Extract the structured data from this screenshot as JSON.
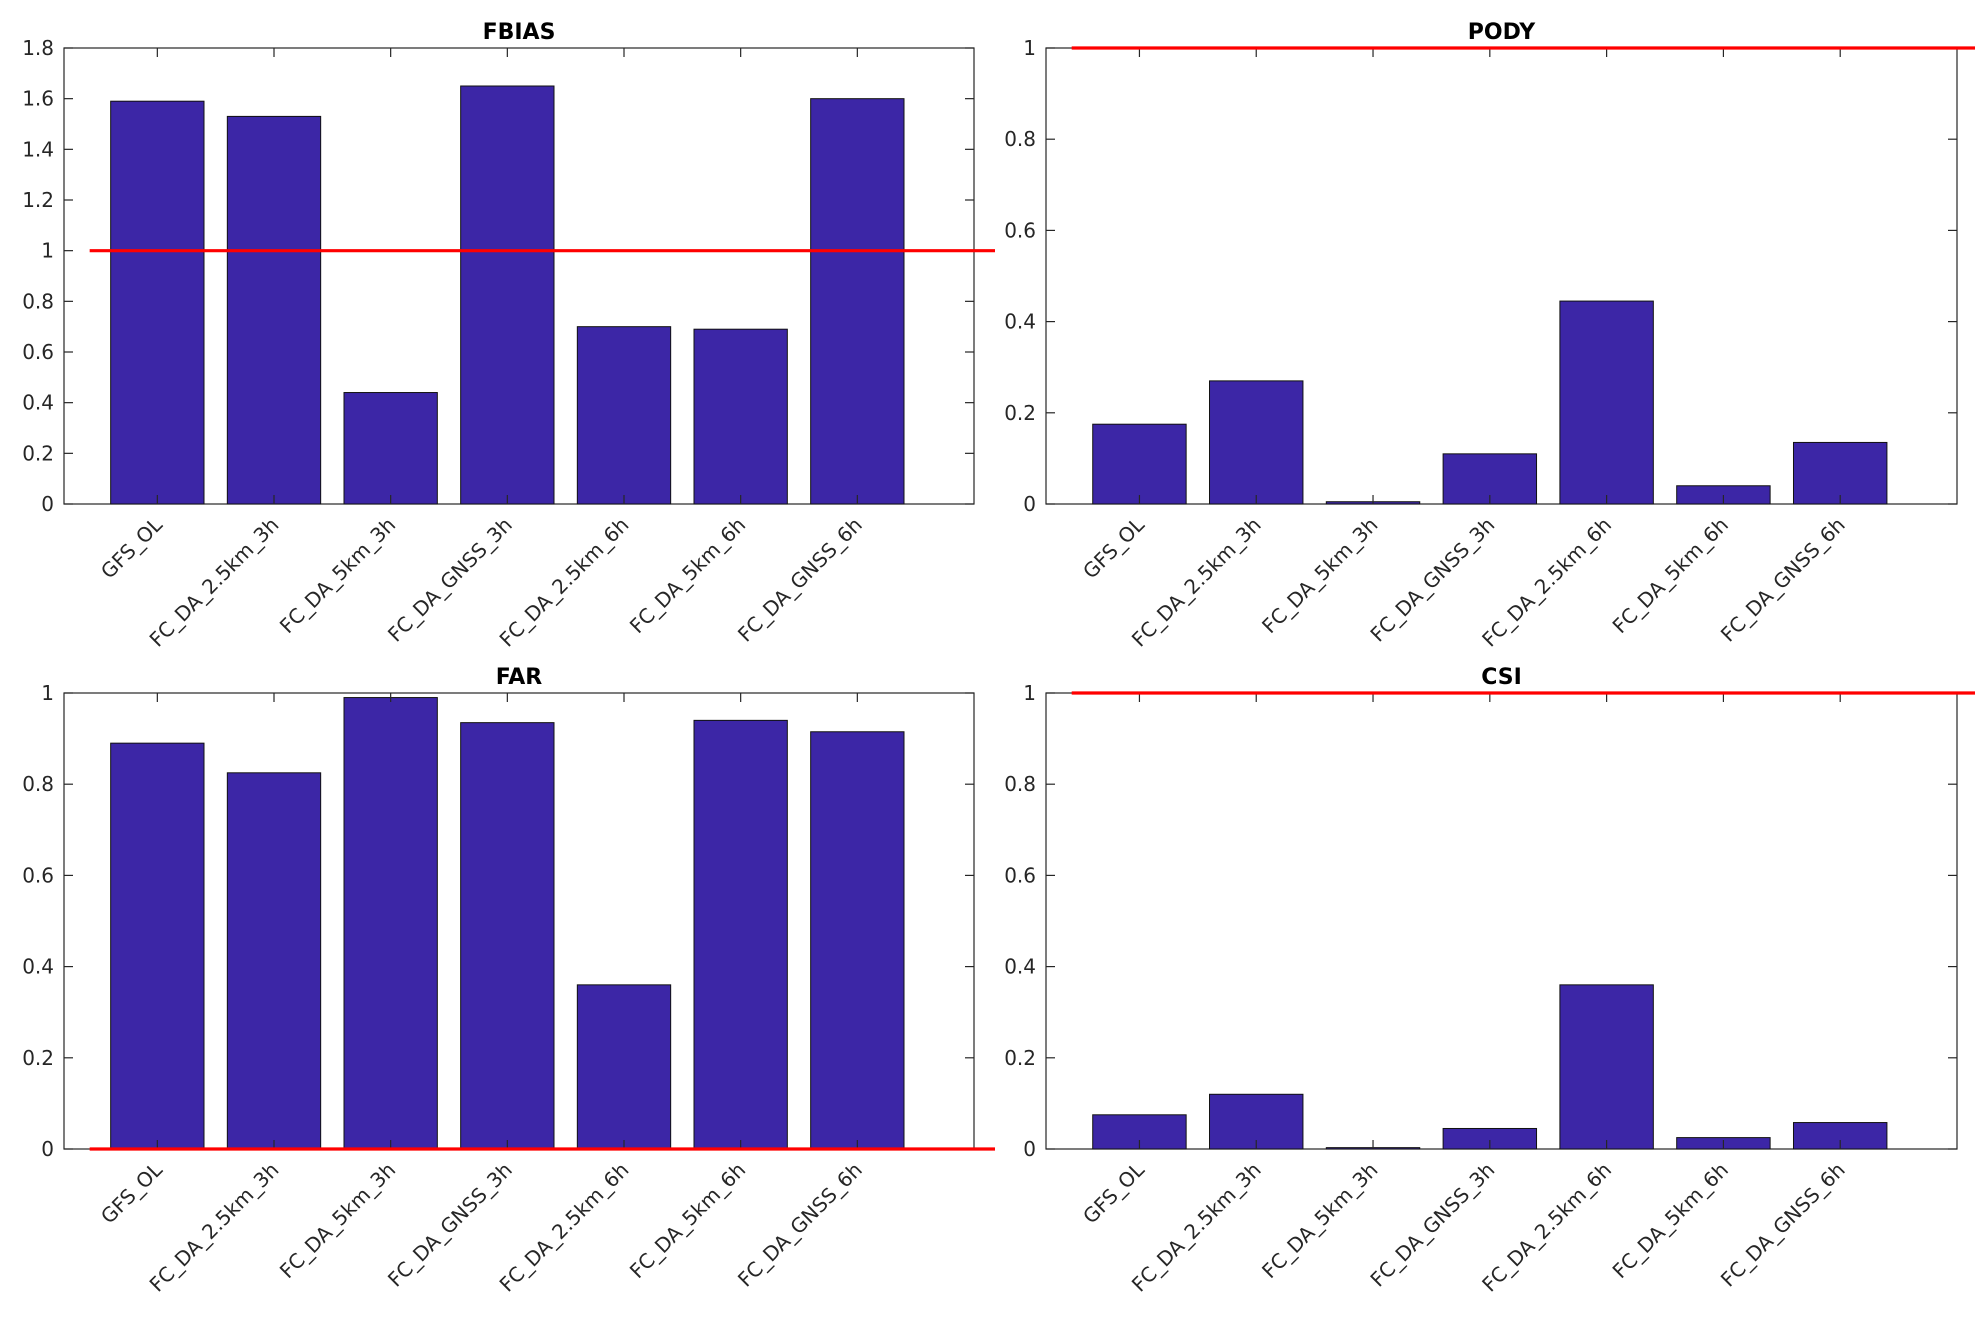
{
  "colors": {
    "bar": "#3c26a6",
    "bar_edge": "#111111",
    "reference": "#ff0000",
    "axis": "#262626"
  },
  "chart_data": [
    {
      "type": "bar",
      "title": "FBIAS",
      "xlabel": "",
      "ylabel": "",
      "categories": [
        "GFS_OL",
        "FC_DA_2.5km_3h",
        "FC_DA_5km_3h",
        "FC_DA_GNSS_3h",
        "FC_DA_2.5km_6h",
        "FC_DA_5km_6h",
        "FC_DA_GNSS_6h"
      ],
      "values": [
        1.59,
        1.53,
        0.44,
        1.65,
        0.7,
        0.69,
        1.6
      ],
      "ylim": [
        0,
        1.8
      ],
      "yticks": [
        0,
        0.2,
        0.4,
        0.6,
        0.8,
        1,
        1.2,
        1.4,
        1.6,
        1.8
      ],
      "ytick_labels": [
        "0",
        "0.2",
        "0.4",
        "0.6",
        "0.8",
        "1",
        "1.2",
        "1.4",
        "1.6",
        "1.8"
      ],
      "reference_line": 1
    },
    {
      "type": "bar",
      "title": "PODY",
      "xlabel": "",
      "ylabel": "",
      "categories": [
        "GFS_OL",
        "FC_DA_2.5km_3h",
        "FC_DA_5km_3h",
        "FC_DA_GNSS_3h",
        "FC_DA_2.5km_6h",
        "FC_DA_5km_6h",
        "FC_DA_GNSS_6h"
      ],
      "values": [
        0.175,
        0.27,
        0.005,
        0.11,
        0.445,
        0.04,
        0.135
      ],
      "ylim": [
        0,
        1
      ],
      "yticks": [
        0,
        0.2,
        0.4,
        0.6,
        0.8,
        1
      ],
      "ytick_labels": [
        "0",
        "0.2",
        "0.4",
        "0.6",
        "0.8",
        "1"
      ],
      "reference_line": 1
    },
    {
      "type": "bar",
      "title": "FAR",
      "xlabel": "",
      "ylabel": "",
      "categories": [
        "GFS_OL",
        "FC_DA_2.5km_3h",
        "FC_DA_5km_3h",
        "FC_DA_GNSS_3h",
        "FC_DA_2.5km_6h",
        "FC_DA_5km_6h",
        "FC_DA_GNSS_6h"
      ],
      "values": [
        0.89,
        0.825,
        0.99,
        0.935,
        0.36,
        0.94,
        0.915
      ],
      "ylim": [
        0,
        1
      ],
      "yticks": [
        0,
        0.2,
        0.4,
        0.6,
        0.8,
        1
      ],
      "ytick_labels": [
        "0",
        "0.2",
        "0.4",
        "0.6",
        "0.8",
        "1"
      ],
      "reference_line": 0
    },
    {
      "type": "bar",
      "title": "CSI",
      "xlabel": "",
      "ylabel": "",
      "categories": [
        "GFS_OL",
        "FC_DA_2.5km_3h",
        "FC_DA_5km_3h",
        "FC_DA_GNSS_3h",
        "FC_DA_2.5km_6h",
        "FC_DA_5km_6h",
        "FC_DA_GNSS_6h"
      ],
      "values": [
        0.075,
        0.12,
        0.003,
        0.045,
        0.36,
        0.025,
        0.058
      ],
      "ylim": [
        0,
        1
      ],
      "yticks": [
        0,
        0.2,
        0.4,
        0.6,
        0.8,
        1
      ],
      "ytick_labels": [
        "0",
        "0.2",
        "0.4",
        "0.6",
        "0.8",
        "1"
      ],
      "reference_line": 1
    }
  ]
}
